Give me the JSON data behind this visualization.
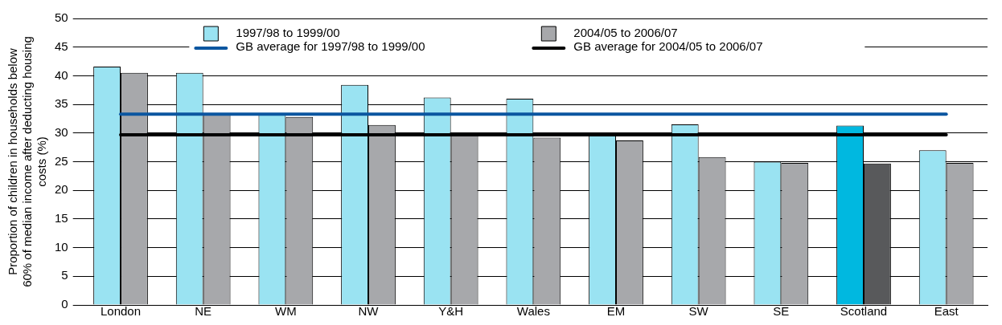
{
  "chart_data": {
    "type": "bar",
    "ylabel": "Proportion of children in households below 60% of median income after deducting housing costs (%)",
    "categories": [
      "London",
      "NE",
      "WM",
      "NW",
      "Y&H",
      "Wales",
      "EM",
      "SW",
      "SE",
      "Scotland",
      "East"
    ],
    "series": [
      {
        "name": "1997/98 to 1999/00",
        "color": "#9ae3f2",
        "colors": [
          "#9ae3f2",
          "#9ae3f2",
          "#9ae3f2",
          "#9ae3f2",
          "#9ae3f2",
          "#9ae3f2",
          "#9ae3f2",
          "#9ae3f2",
          "#9ae3f2",
          "#00b8e0",
          "#9ae3f2"
        ],
        "values": [
          41.6,
          40.5,
          33.3,
          38.4,
          36.2,
          36.0,
          29.7,
          31.5,
          25.0,
          31.3,
          27.0
        ]
      },
      {
        "name": "2004/05 to 2006/07",
        "color": "#a7a8ab",
        "colors": [
          "#a7a8ab",
          "#a7a8ab",
          "#a7a8ab",
          "#a7a8ab",
          "#a7a8ab",
          "#a7a8ab",
          "#a7a8ab",
          "#a7a8ab",
          "#a7a8ab",
          "#58595b",
          "#a7a8ab"
        ],
        "values": [
          40.5,
          33.3,
          32.8,
          31.4,
          29.7,
          29.2,
          28.7,
          25.8,
          24.8,
          24.7,
          24.8
        ]
      }
    ],
    "ref_lines": [
      {
        "axis": "y",
        "value": 33.3,
        "label": "GB average for 1997/98 to 1999/00",
        "color": "#0b56a0"
      },
      {
        "axis": "y",
        "value": 29.7,
        "label": "GB average for 2004/05 to 2006/07",
        "color": "#000000"
      }
    ],
    "ylim": [
      0,
      50
    ],
    "yticks": [
      0,
      5,
      10,
      15,
      20,
      25,
      30,
      35,
      40,
      45,
      50
    ],
    "grid": "y",
    "legend": "top"
  }
}
